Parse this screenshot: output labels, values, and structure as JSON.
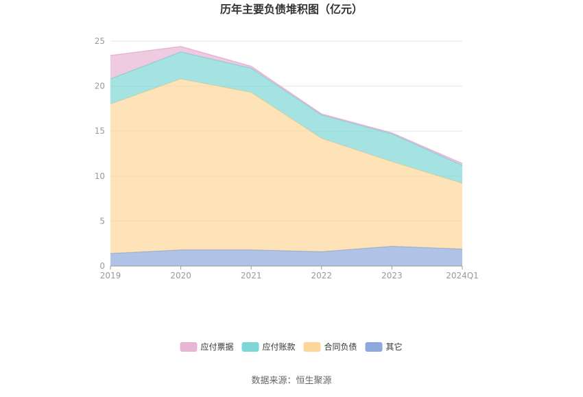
{
  "chart_data": {
    "type": "area",
    "stacked": true,
    "title": "历年主要负债堆积图（亿元）",
    "categories": [
      "2019",
      "2020",
      "2021",
      "2022",
      "2023",
      "2024Q1"
    ],
    "ylim": [
      0,
      25
    ],
    "yticks": [
      "0",
      "5",
      "10",
      "15",
      "20",
      "25"
    ],
    "grid": true,
    "legend_position": "bottom-center",
    "series": [
      {
        "name": "其它",
        "color": "#8eaadc",
        "values": [
          1.4,
          1.8,
          1.8,
          1.6,
          2.2,
          1.9
        ]
      },
      {
        "name": "合同负债",
        "color": "#fcd799",
        "values": [
          16.6,
          19.0,
          17.5,
          12.6,
          9.4,
          7.3
        ]
      },
      {
        "name": "应付账款",
        "color": "#7fd6d6",
        "values": [
          2.8,
          3.0,
          2.7,
          2.6,
          3.1,
          2.0
        ]
      },
      {
        "name": "应付票据",
        "color": "#e8b5d4",
        "values": [
          2.6,
          0.6,
          0.2,
          0.1,
          0.1,
          0.2
        ]
      }
    ],
    "legend": [
      "应付票据",
      "应付账款",
      "合同负债",
      "其它"
    ]
  },
  "source": "数据来源：恒生聚源"
}
